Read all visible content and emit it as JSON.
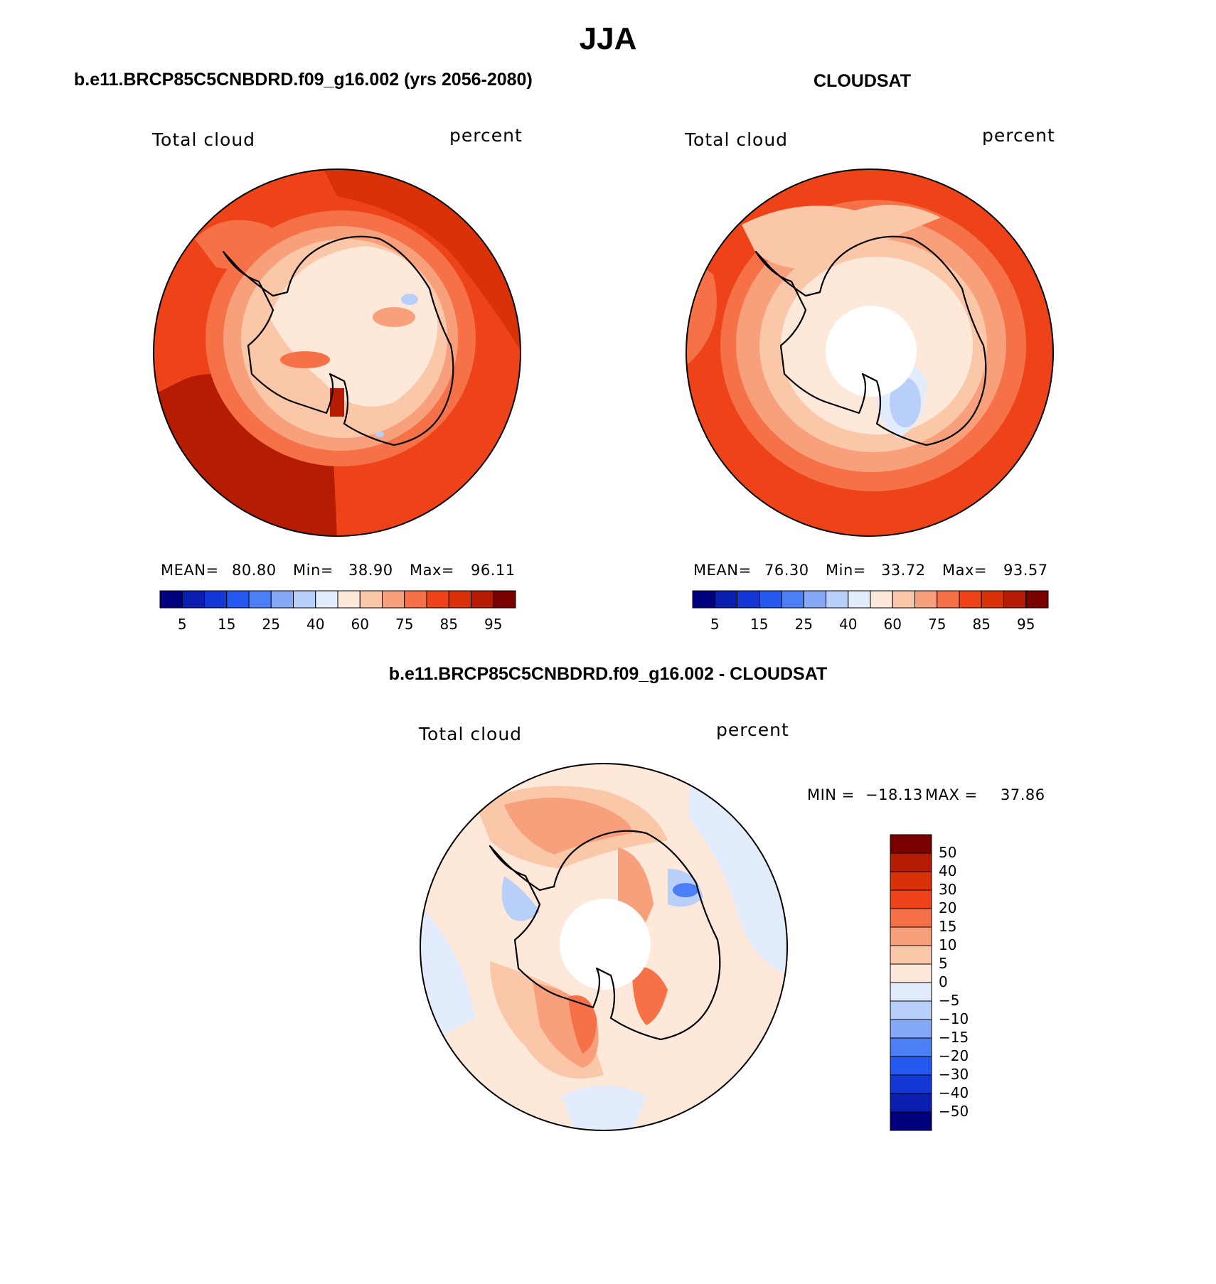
{
  "main_title": "JJA",
  "panels": {
    "model": {
      "title": "b.e11.BRCP85C5CNBDRD.f09_g16.002 (yrs 2056-2080)",
      "left_label": "Total cloud",
      "right_label": "percent",
      "stats": {
        "mean_label": "MEAN=",
        "mean": "80.80",
        "min_label": "Min=",
        "min": "38.90",
        "max_label": "Max=",
        "max": "96.11"
      }
    },
    "obs": {
      "title": "CLOUDSAT",
      "left_label": "Total cloud",
      "right_label": "percent",
      "stats": {
        "mean_label": "MEAN=",
        "mean": "76.30",
        "min_label": "Min=",
        "min": "33.72",
        "max_label": "Max=",
        "max": "93.57"
      }
    },
    "diff": {
      "title": "b.e11.BRCP85C5CNBDRD.f09_g16.002 - CLOUDSAT",
      "left_label": "Total cloud",
      "right_label": "percent",
      "stats": {
        "min_label": "MIN =",
        "min": "−18.13",
        "max_label": "MAX =",
        "max": "37.86"
      }
    }
  },
  "abs_colorbar": {
    "colors": [
      "#00007f",
      "#0a1fb0",
      "#1438d6",
      "#2458ef",
      "#4c7ef6",
      "#86a9f7",
      "#b8cffa",
      "#e2ecfd",
      "#fde8da",
      "#fbc7a9",
      "#f8a07c",
      "#f67147",
      "#ee4318",
      "#d93208",
      "#b61c04",
      "#7a0000"
    ],
    "tick_labels": [
      "5",
      "15",
      "25",
      "40",
      "60",
      "75",
      "85",
      "95"
    ]
  },
  "diff_colorbar": {
    "colors_top_to_bottom": [
      "#7a0000",
      "#b61c04",
      "#d93208",
      "#ee4318",
      "#f67147",
      "#f8a07c",
      "#fbc7a9",
      "#fde8da",
      "#e2ecfd",
      "#b8cffa",
      "#86a9f7",
      "#4c7ef6",
      "#2458ef",
      "#1438d6",
      "#0a1fb0",
      "#00007f"
    ],
    "tick_labels": [
      "50",
      "40",
      "30",
      "20",
      "15",
      "10",
      "5",
      "0",
      "−5",
      "−10",
      "−15",
      "−20",
      "−30",
      "−40",
      "−50"
    ]
  }
}
